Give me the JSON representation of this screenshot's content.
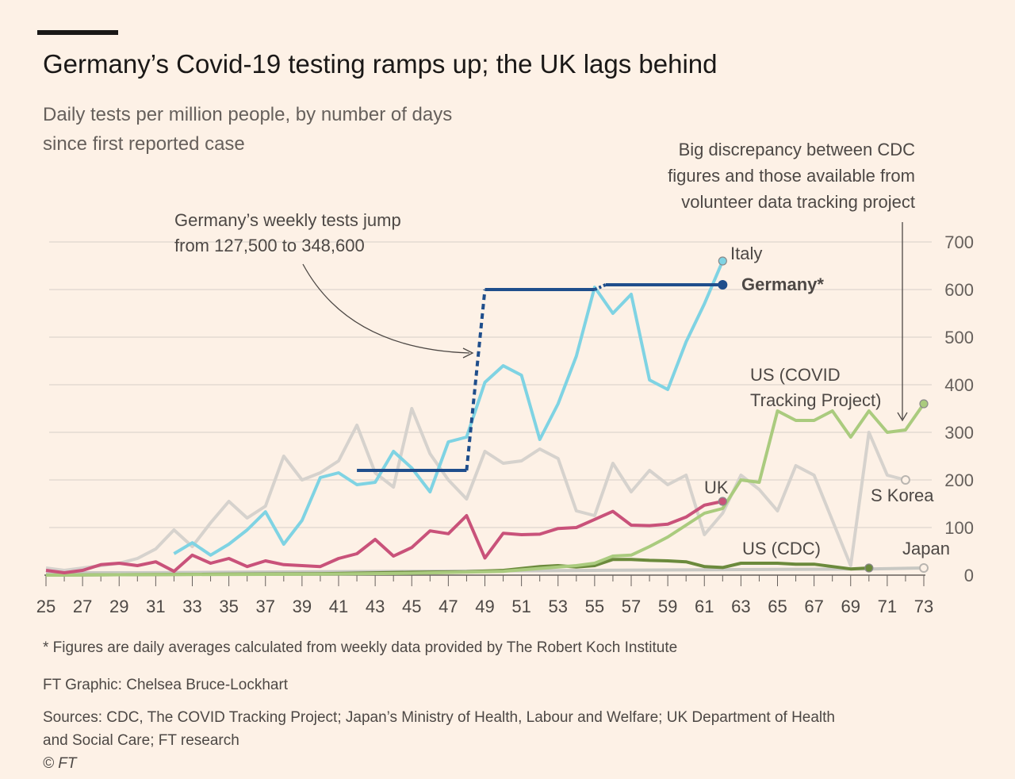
{
  "header": {
    "title": "Germany’s Covid-19 testing ramps up; the UK lags behind",
    "subtitle_line1": "Daily tests per million people, by number of days",
    "subtitle_line2": "since first reported case"
  },
  "footer": {
    "footnote": "* Figures are daily averages calculated from weekly data provided by The Robert Koch Institute",
    "credit": "FT Graphic: Chelsea Bruce-Lockhart",
    "sources_line1": "Sources: CDC, The COVID Tracking Project; Japan’s Ministry of Health, Labour and Welfare; UK Department of Health",
    "sources_line2": "and Social Care; FT research",
    "copyright": "© FT"
  },
  "chart_data": {
    "type": "line",
    "title": "Germany’s Covid-19 testing ramps up; the UK lags behind",
    "subtitle": "Daily tests per million people, by number of days since first reported case",
    "xlim": [
      25,
      73
    ],
    "ylim": [
      0,
      700
    ],
    "x_ticks": [
      25,
      27,
      29,
      31,
      33,
      35,
      37,
      39,
      41,
      43,
      45,
      47,
      49,
      51,
      53,
      55,
      57,
      59,
      61,
      63,
      65,
      67,
      69,
      71,
      73
    ],
    "y_ticks": [
      0,
      100,
      200,
      300,
      400,
      500,
      600,
      700
    ],
    "y_axis_side": "right",
    "grid": "horizontal",
    "colors": {
      "Italy": "#7fd3e3",
      "Germany": "#1f4e8c",
      "S Korea": "#d6d2cd",
      "UK": "#c9527a",
      "US (COVID Tracking Project)": "#aacb7e",
      "US (CDC)": "#6b8a3c",
      "Japan": "#c8c8c3"
    },
    "series": [
      {
        "name": "S Korea",
        "x": [
          25,
          26,
          27,
          28,
          29,
          30,
          31,
          32,
          33,
          34,
          35,
          36,
          37,
          38,
          39,
          40,
          41,
          42,
          43,
          44,
          45,
          46,
          47,
          48,
          49,
          50,
          51,
          52,
          53,
          54,
          55,
          56,
          57,
          58,
          59,
          60,
          61,
          62,
          63,
          64,
          65,
          66,
          67,
          68,
          69,
          70,
          71,
          72
        ],
        "y": [
          15,
          10,
          15,
          20,
          25,
          35,
          55,
          95,
          60,
          110,
          155,
          120,
          145,
          250,
          200,
          215,
          240,
          315,
          215,
          185,
          350,
          255,
          200,
          160,
          260,
          235,
          240,
          265,
          245,
          135,
          125,
          235,
          175,
          220,
          190,
          210,
          85,
          130,
          210,
          180,
          135,
          230,
          210,
          115,
          20,
          300,
          210,
          200
        ]
      },
      {
        "name": "Italy",
        "x": [
          32,
          33,
          34,
          35,
          36,
          37,
          38,
          39,
          40,
          41,
          42,
          43,
          44,
          45,
          46,
          47,
          48,
          49,
          50,
          51,
          52,
          53,
          54,
          55,
          56,
          57,
          58,
          59,
          60,
          61,
          62
        ],
        "y": [
          45,
          68,
          42,
          65,
          95,
          133,
          65,
          115,
          205,
          215,
          190,
          195,
          260,
          225,
          175,
          280,
          290,
          405,
          440,
          420,
          285,
          360,
          460,
          605,
          550,
          590,
          410,
          390,
          490,
          570,
          660
        ]
      },
      {
        "name": "Germany",
        "x": [
          42,
          48,
          48,
          49,
          55,
          55.6,
          62
        ],
        "y": [
          220,
          220,
          220,
          600,
          600,
          610,
          610
        ]
      },
      {
        "name": "UK",
        "x": [
          25,
          26,
          27,
          28,
          29,
          30,
          31,
          32,
          33,
          34,
          35,
          36,
          37,
          38,
          39,
          40,
          41,
          42,
          43,
          44,
          45,
          46,
          47,
          48,
          49,
          50,
          51,
          52,
          53,
          54,
          55,
          56,
          57,
          58,
          59,
          60,
          61,
          62
        ],
        "y": [
          10,
          5,
          10,
          22,
          25,
          20,
          28,
          8,
          42,
          25,
          35,
          18,
          30,
          22,
          20,
          18,
          35,
          45,
          75,
          40,
          58,
          93,
          87,
          125,
          36,
          88,
          85,
          86,
          98,
          100,
          117,
          134,
          105,
          104,
          107,
          122,
          147,
          155
        ]
      },
      {
        "name": "US (COVID Tracking Project)",
        "x": [
          25,
          30,
          40,
          45,
          50,
          54,
          55,
          56,
          57,
          58,
          59,
          60,
          61,
          62,
          63,
          64,
          65,
          66,
          67,
          68,
          69,
          70,
          71,
          72,
          73
        ],
        "y": [
          0,
          1,
          2,
          4,
          8,
          20,
          25,
          40,
          42,
          60,
          80,
          105,
          130,
          140,
          200,
          195,
          345,
          325,
          325,
          345,
          290,
          345,
          300,
          305,
          360
        ]
      },
      {
        "name": "US (CDC)",
        "x": [
          25,
          30,
          35,
          40,
          45,
          48,
          50,
          52,
          53,
          54,
          55,
          56,
          57,
          58,
          59,
          60,
          61,
          62,
          63,
          64,
          65,
          66,
          67,
          68,
          69,
          70
        ],
        "y": [
          0,
          1,
          2,
          3,
          6,
          7,
          10,
          18,
          20,
          17,
          20,
          33,
          33,
          31,
          30,
          28,
          18,
          16,
          25,
          25,
          25,
          23,
          23,
          18,
          13,
          15
        ]
      },
      {
        "name": "Japan",
        "x": [
          25,
          30,
          35,
          40,
          45,
          50,
          55,
          60,
          65,
          70,
          73
        ],
        "y": [
          5,
          5,
          6,
          7,
          8,
          9,
          10,
          11,
          12,
          13,
          15
        ]
      }
    ],
    "annotations": [
      {
        "text_line1": "Germany’s weekly tests jump",
        "text_line2": "from 127,500 to 348,600"
      },
      {
        "text_line1": "Big discrepancy between CDC",
        "text_line2": "figures and those available from",
        "text_line3": "volunteer data tracking project"
      }
    ],
    "labels": {
      "italy": "Italy",
      "germany": "Germany*",
      "us_ctp_1": "US (COVID",
      "us_ctp_2": "Tracking Project)",
      "uk": "UK",
      "skorea": "S Korea",
      "us_cdc": "US (CDC)",
      "japan": "Japan"
    }
  }
}
